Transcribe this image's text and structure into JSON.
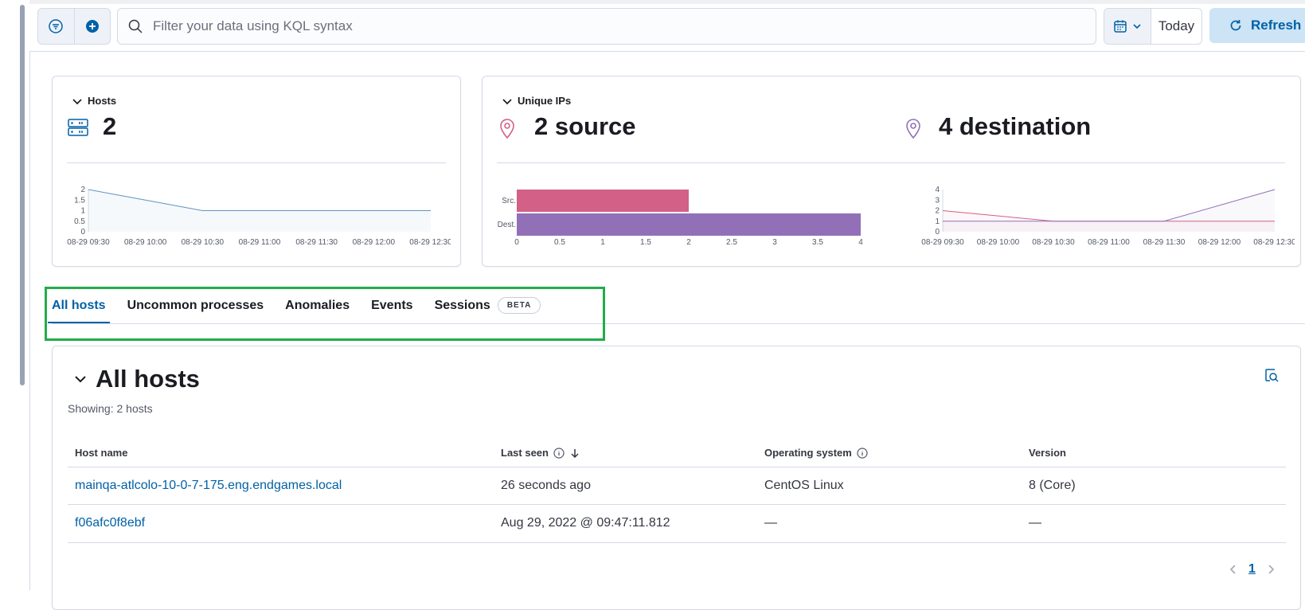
{
  "topbar": {
    "search_placeholder": "Filter your data using KQL syntax",
    "date_label": "Today",
    "refresh_label": "Refresh"
  },
  "hosts_panel": {
    "title": "Hosts",
    "value": "2",
    "chart_ticks_y": [
      "2",
      "1.5",
      "1",
      "0.5",
      "0"
    ],
    "chart_ticks_x": [
      "08-29 09:30",
      "08-29 10:00",
      "08-29 10:30",
      "08-29 11:00",
      "08-29 11:30",
      "08-29 12:00",
      "08-29 12:30"
    ]
  },
  "ips_panel": {
    "title": "Unique IPs",
    "source_label": "2 source",
    "destination_label": "4 destination",
    "bar_categories": [
      "Src.",
      "Dest."
    ],
    "bar_ticks_x": [
      "0",
      "0.5",
      "1",
      "1.5",
      "2",
      "2.5",
      "3",
      "3.5",
      "4"
    ],
    "line_ticks_y": [
      "4",
      "3",
      "2",
      "1",
      "0"
    ],
    "line_ticks_x": [
      "08-29 09:30",
      "08-29 10:00",
      "08-29 10:30",
      "08-29 11:00",
      "08-29 11:30",
      "08-29 12:00",
      "08-29 12:30"
    ]
  },
  "chart_data": [
    {
      "type": "area",
      "x": [
        "08-29 09:30",
        "08-29 10:00",
        "08-29 10:30",
        "08-29 11:00",
        "08-29 11:30",
        "08-29 12:00",
        "08-29 12:30"
      ],
      "series": [
        {
          "values": [
            2,
            1.5,
            1,
            1,
            1,
            1,
            1
          ],
          "color": "#6092c0"
        }
      ],
      "ylim": [
        0,
        2
      ]
    },
    {
      "type": "bar",
      "categories": [
        "Src.",
        "Dest."
      ],
      "values": [
        2,
        4
      ],
      "colors": [
        "#d36086",
        "#9170b8"
      ],
      "xlim": [
        0,
        4
      ]
    },
    {
      "type": "line",
      "x": [
        "08-29 09:30",
        "08-29 10:00",
        "08-29 10:30",
        "08-29 11:00",
        "08-29 11:30",
        "08-29 12:00",
        "08-29 12:30"
      ],
      "series": [
        {
          "values": [
            2,
            1.5,
            1,
            1,
            1,
            1,
            1
          ],
          "color": "#d36086"
        },
        {
          "values": [
            1,
            1,
            1,
            1,
            1,
            2.5,
            4
          ],
          "color": "#9170b8"
        }
      ],
      "ylim": [
        0,
        4
      ]
    }
  ],
  "tabs": [
    {
      "label": "All hosts",
      "active": true
    },
    {
      "label": "Uncommon processes"
    },
    {
      "label": "Anomalies"
    },
    {
      "label": "Events"
    },
    {
      "label": "Sessions",
      "badge": "BETA"
    }
  ],
  "all_hosts": {
    "title": "All hosts",
    "showing": "Showing: 2 hosts",
    "columns": [
      "Host name",
      "Last seen",
      "Operating system",
      "Version"
    ],
    "rows": [
      {
        "host": "mainqa-atlcolo-10-0-7-175.eng.endgames.local",
        "last_seen": "26 seconds ago",
        "os": "CentOS Linux",
        "version": "8 (Core)"
      },
      {
        "host": "f06afc0f8ebf",
        "last_seen": "Aug 29, 2022 @ 09:47:11.812",
        "os": "—",
        "version": "—"
      }
    ],
    "page": "1"
  },
  "colors": {
    "accent": "#0061a6",
    "highlight": "#22ac4a"
  }
}
